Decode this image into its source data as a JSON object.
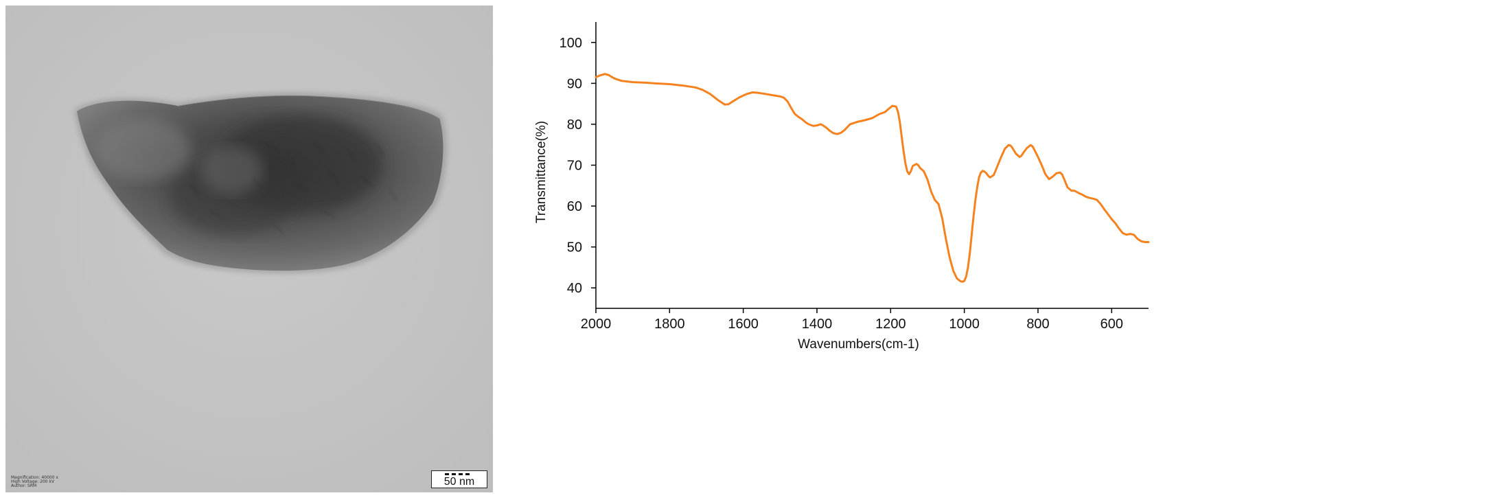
{
  "tem_image": {
    "scale_bar_label": "50 nm",
    "metadata": [
      {
        "label": "Magnification:",
        "value": "40000 x"
      },
      {
        "label": "High Voltage:",
        "value": "200 kV"
      },
      {
        "label": "Author:",
        "value": "SRM"
      }
    ]
  },
  "chart_data": {
    "type": "line",
    "title": "",
    "xlabel": "Wavenumbers(cm-1)",
    "ylabel": "Transmittance(%)",
    "xlim": [
      2000,
      500
    ],
    "ylim": [
      35,
      105
    ],
    "x_reversed": true,
    "x_ticks": [
      2000,
      1800,
      1600,
      1400,
      1200,
      1000,
      800,
      600
    ],
    "y_ticks": [
      40,
      50,
      60,
      70,
      80,
      90,
      100
    ],
    "grid": false,
    "legend": "none",
    "line_color": "#f5821f",
    "series": [
      {
        "x": [
          2000,
          1990,
          1975,
          1965,
          1950,
          1930,
          1900,
          1870,
          1840,
          1800,
          1760,
          1730,
          1710,
          1690,
          1670,
          1650,
          1640,
          1630,
          1610,
          1590,
          1575,
          1560,
          1540,
          1520,
          1500,
          1490,
          1480,
          1470,
          1460,
          1450,
          1440,
          1430,
          1420,
          1410,
          1400,
          1390,
          1385,
          1375,
          1365,
          1355,
          1345,
          1335,
          1325,
          1310,
          1290,
          1270,
          1250,
          1230,
          1215,
          1205,
          1195,
          1185,
          1180,
          1175,
          1170,
          1165,
          1160,
          1155,
          1150,
          1145,
          1140,
          1130,
          1125,
          1120,
          1110,
          1100,
          1090,
          1080,
          1070,
          1060,
          1050,
          1040,
          1030,
          1020,
          1010,
          1005,
          1000,
          995,
          990,
          985,
          980,
          975,
          970,
          965,
          960,
          955,
          950,
          945,
          940,
          935,
          930,
          920,
          910,
          900,
          890,
          880,
          875,
          870,
          860,
          850,
          845,
          840,
          830,
          820,
          815,
          810,
          800,
          790,
          780,
          770,
          760,
          750,
          740,
          735,
          730,
          720,
          710,
          700,
          690,
          680,
          670,
          660,
          650,
          640,
          630,
          620,
          610,
          600,
          590,
          580,
          570,
          560,
          550,
          540,
          530,
          520,
          510,
          500
        ],
        "y": [
          91.5,
          91.9,
          92.3,
          92.0,
          91.2,
          90.6,
          90.3,
          90.2,
          90.0,
          89.8,
          89.4,
          89.0,
          88.4,
          87.4,
          86.0,
          84.8,
          84.9,
          85.5,
          86.6,
          87.4,
          87.8,
          87.7,
          87.4,
          87.1,
          86.8,
          86.5,
          85.6,
          84.0,
          82.5,
          81.8,
          81.2,
          80.4,
          79.9,
          79.6,
          79.7,
          80.0,
          79.8,
          79.2,
          78.4,
          77.8,
          77.6,
          77.9,
          78.6,
          80.0,
          80.6,
          81.0,
          81.5,
          82.5,
          83.0,
          83.8,
          84.5,
          84.3,
          83.0,
          80.5,
          77.0,
          73.5,
          70.5,
          68.5,
          67.8,
          68.5,
          69.8,
          70.3,
          70.0,
          69.3,
          68.5,
          66.5,
          63.5,
          61.5,
          60.5,
          57.0,
          52.0,
          47.5,
          44.2,
          42.3,
          41.6,
          41.5,
          41.7,
          42.8,
          45.0,
          48.5,
          53.0,
          57.5,
          61.5,
          64.5,
          67.0,
          68.2,
          68.6,
          68.4,
          68.0,
          67.4,
          67.0,
          67.6,
          69.8,
          72.0,
          74.0,
          74.9,
          74.8,
          74.3,
          72.8,
          72.0,
          72.3,
          73.0,
          74.2,
          74.9,
          74.6,
          73.8,
          72.0,
          70.0,
          67.8,
          66.6,
          67.2,
          68.0,
          68.2,
          67.8,
          66.8,
          64.6,
          63.8,
          63.7,
          63.2,
          62.8,
          62.3,
          62.0,
          61.8,
          61.5,
          60.5,
          59.2,
          58.0,
          56.8,
          55.8,
          54.5,
          53.4,
          53.0,
          53.2,
          53.0,
          52.0,
          51.4,
          51.2,
          51.2
        ]
      }
    ]
  }
}
